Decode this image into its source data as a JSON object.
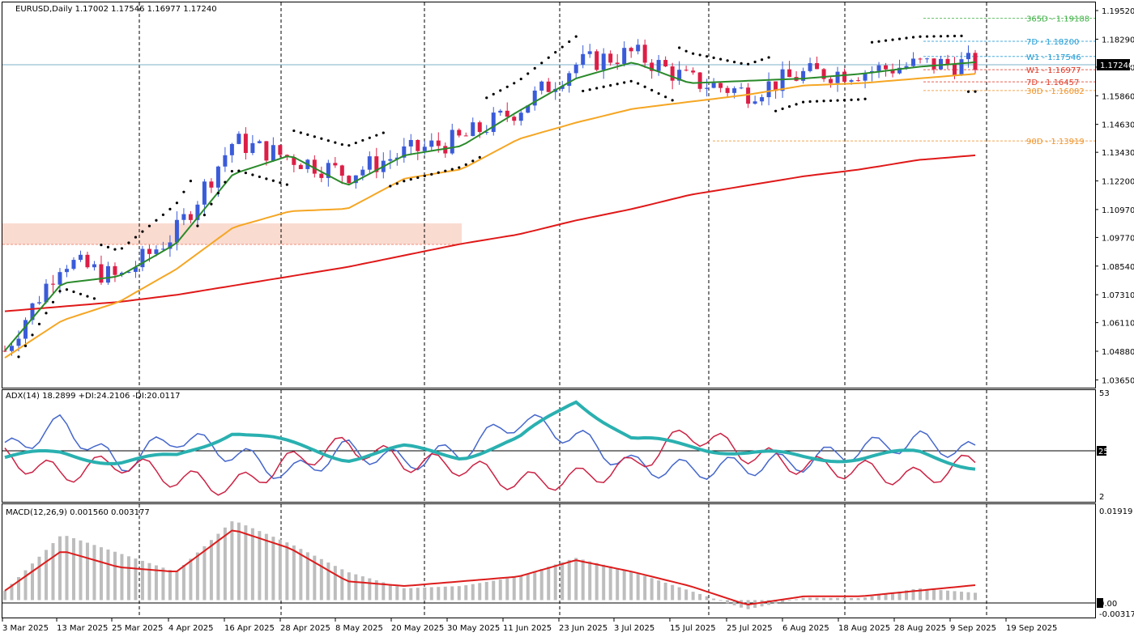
{
  "chart_header": {
    "symbol_line": "EURUSD,Daily  1.17002 1.17546 1.16977 1.17240",
    "current_price_tag": "1.17240"
  },
  "price_axis_ticks": [
    "1.19520",
    "1.18290",
    "1.17090",
    "1.15860",
    "1.14630",
    "1.13430",
    "1.12200",
    "1.10970",
    "1.09770",
    "1.08540",
    "1.07310",
    "1.06110",
    "1.04880",
    "1.03650"
  ],
  "date_axis_labels": [
    "3 Mar 2025",
    "13 Mar 2025",
    "25 Mar 2025",
    "4 Apr 2025",
    "16 Apr 2025",
    "28 Apr 2025",
    "8 May 2025",
    "20 May 2025",
    "30 May 2025",
    "11 Jun 2025",
    "23 Jun 2025",
    "3 Jul 2025",
    "15 Jul 2025",
    "25 Jul 2025",
    "6 Aug 2025",
    "18 Aug 2025",
    "28 Aug 2025",
    "9 Sep 2025",
    "19 Sep 2025"
  ],
  "levels": [
    {
      "label": "365D - 1.19188",
      "value": 1.19188,
      "color": "#3cb043"
    },
    {
      "label": "7D - 1.18200",
      "value": 1.182,
      "color": "#1f9bd6"
    },
    {
      "label": "W1 - 1.17546",
      "value": 1.17546,
      "color": "#1f9bd6"
    },
    {
      "label": "W1 - 1.16977",
      "value": 1.16977,
      "color": "#e03a2a"
    },
    {
      "label": "7D - 1.16457",
      "value": 1.16457,
      "color": "#e03a2a"
    },
    {
      "label": "30D - 1.16082",
      "value": 1.16082,
      "color": "#f0932a"
    },
    {
      "label": "90D - 1.13919",
      "value": 1.13919,
      "color": "#f0932a"
    }
  ],
  "adx_panel": {
    "title": "ADX(14) 18.2899 +DI:24.2106 -DI:20.0117",
    "axis_ticks": [
      "53",
      "25",
      "2"
    ],
    "level_line": 25
  },
  "macd_panel": {
    "title": "MACD(12,26,9) 0.001560 0.003177",
    "axis_ticks": [
      "0.01919",
      "0.00",
      "-0.003177"
    ]
  },
  "colors": {
    "bull_candle": "#3a5bd9",
    "bear_candle": "#dc1e46",
    "sma_fast": "#2a8a2a",
    "sma_mid": "#f5a623",
    "sma_slow": "#e01818",
    "adx_line": "#2ab0b0",
    "plus_di": "#4466cc",
    "minus_di": "#cc2244",
    "macd_hist": "#bdbdbd",
    "macd_signal": "#dd1c1c",
    "zone_fill": "#fadbd0"
  },
  "chart_data": [
    {
      "type": "candlestick",
      "title": "EURUSD,Daily",
      "ylim": [
        1.0335,
        1.198
      ],
      "x": [
        "3 Mar 2025",
        "13 Mar 2025",
        "25 Mar 2025",
        "4 Apr 2025",
        "16 Apr 2025",
        "28 Apr 2025",
        "8 May 2025",
        "20 May 2025",
        "30 May 2025",
        "11 Jun 2025",
        "23 Jun 2025",
        "3 Jul 2025",
        "15 Jul 2025",
        "25 Jul 2025",
        "6 Aug 2025",
        "18 Aug 2025",
        "28 Aug 2025",
        "9 Sep 2025"
      ],
      "close": [
        1.049,
        1.088,
        1.08,
        1.1,
        1.139,
        1.132,
        1.125,
        1.134,
        1.14,
        1.153,
        1.172,
        1.177,
        1.165,
        1.16,
        1.168,
        1.169,
        1.172,
        1.1724
      ],
      "overlays": {
        "sma_fast": [
          1.049,
          1.078,
          1.081,
          1.095,
          1.125,
          1.133,
          1.12,
          1.133,
          1.137,
          1.152,
          1.166,
          1.173,
          1.164,
          1.165,
          1.166,
          1.168,
          1.171,
          1.173
        ],
        "sma_mid": [
          1.046,
          1.062,
          1.07,
          1.084,
          1.102,
          1.109,
          1.11,
          1.123,
          1.127,
          1.14,
          1.147,
          1.153,
          1.156,
          1.159,
          1.163,
          1.164,
          1.166,
          1.168
        ],
        "sma_slow": [
          1.066,
          1.068,
          1.07,
          1.073,
          1.077,
          1.081,
          1.085,
          1.09,
          1.095,
          1.099,
          1.105,
          1.11,
          1.116,
          1.12,
          1.124,
          1.127,
          1.131,
          1.133
        ]
      },
      "zone": {
        "from": 1.095,
        "to": 1.1045
      }
    },
    {
      "type": "line",
      "title": "ADX(14)",
      "ylim": [
        2,
        53
      ],
      "series": [
        {
          "name": "ADX",
          "values": [
            22,
            24,
            20,
            22,
            35,
            28,
            22,
            26,
            23,
            30,
            50,
            30,
            28,
            24,
            22,
            22,
            24,
            18
          ]
        },
        {
          "name": "+DI",
          "values": [
            25,
            38,
            18,
            32,
            24,
            14,
            26,
            20,
            25,
            40,
            32,
            18,
            16,
            18,
            20,
            26,
            30,
            24
          ]
        },
        {
          "name": "-DI",
          "values": [
            22,
            14,
            20,
            12,
            8,
            20,
            28,
            20,
            18,
            10,
            12,
            18,
            34,
            24,
            18,
            16,
            12,
            20
          ]
        }
      ]
    },
    {
      "type": "bar",
      "title": "MACD(12,26,9)",
      "ylim": [
        -0.0032,
        0.0192
      ],
      "series": [
        {
          "name": "MACD",
          "values": [
            0.002,
            0.014,
            0.01,
            0.006,
            0.017,
            0.012,
            0.006,
            0.0025,
            0.003,
            0.005,
            0.009,
            0.006,
            0.002,
            -0.002,
            0.0005,
            0.0004,
            0.0025,
            0.00156
          ]
        },
        {
          "name": "Signal",
          "values": [
            0.002,
            0.0105,
            0.007,
            0.006,
            0.015,
            0.011,
            0.004,
            0.003,
            0.004,
            0.005,
            0.0085,
            0.006,
            0.003,
            -0.001,
            0.0008,
            0.0008,
            0.002,
            0.003177
          ]
        }
      ]
    }
  ]
}
